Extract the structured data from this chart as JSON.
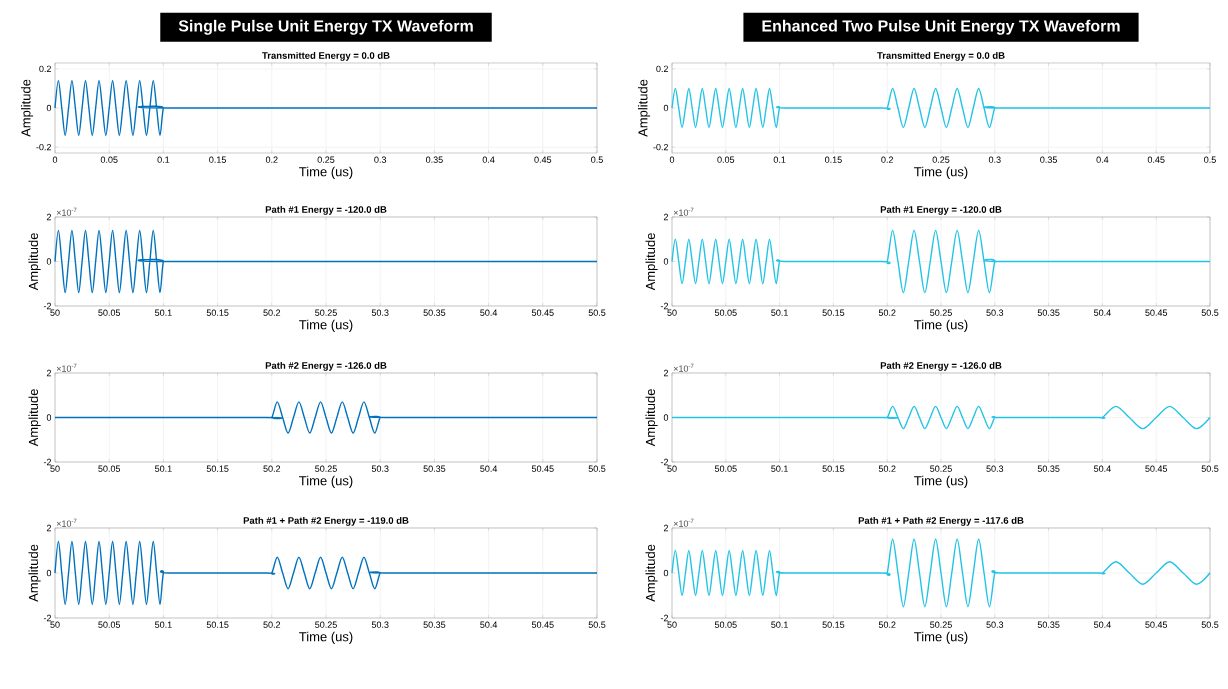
{
  "chart_data": [
    {
      "type": "line",
      "title": "Single Pulse Unit Energy TX Waveform",
      "subtitle": "Transmitted Energy = 0.0 dB",
      "xlabel": "Time (us)",
      "ylabel": "Amplitude",
      "xlim": [
        0,
        0.5
      ],
      "ylim": [
        -0.23,
        0.23
      ],
      "xticks": [
        0,
        0.05,
        0.1,
        0.15,
        0.2,
        0.25,
        0.3,
        0.35,
        0.4,
        0.45,
        0.5
      ],
      "yticks": [
        -0.2,
        0,
        0.2
      ],
      "grid": true,
      "series": [
        {
          "color": "#0072bd",
          "x": [
            0,
            0.003125,
            0.00625,
            0.009375,
            0.0125,
            0.015625,
            0.01875,
            0.021875,
            0.025,
            0.028125,
            0.03125,
            0.034375,
            0.0375,
            0.040625,
            0.04375,
            0.046875,
            0.05,
            0.053125,
            0.05625,
            0.059375,
            0.0625,
            0.065625,
            0.06875,
            0.071875,
            0.075,
            0.078125,
            0.08125,
            0.084375,
            0.0875,
            0.090625,
            0.09375,
            0.096875,
            0.1,
            0.105,
            0.5
          ],
          "values": [
            0,
            0.14,
            0,
            -0.14,
            0,
            0.14,
            0,
            -0.14,
            0,
            0.14,
            0,
            -0.14,
            0,
            0.14,
            0,
            -0.14,
            0,
            0.14,
            0,
            -0.14,
            0,
            0.14,
            0,
            -0.14,
            0,
            0.14,
            0,
            -0.14,
            0,
            0.14,
            0,
            -0.14,
            0,
            0,
            0
          ]
        }
      ]
    },
    {
      "type": "line",
      "title": "Enhanced Two Pulse Unit Energy TX Waveform",
      "subtitle": "Transmitted Energy = 0.0 dB",
      "xlabel": "Time (us)",
      "ylabel": "Amplitude",
      "xlim": [
        0,
        0.5
      ],
      "ylim": [
        -0.23,
        0.23
      ],
      "xticks": [
        0,
        0.05,
        0.1,
        0.15,
        0.2,
        0.25,
        0.3,
        0.35,
        0.4,
        0.45,
        0.5
      ],
      "yticks": [
        -0.2,
        0,
        0.2
      ],
      "grid": true,
      "series": [
        {
          "color": "#22c4e6",
          "x": [
            0,
            0.003125,
            0.00625,
            0.009375,
            0.0125,
            0.015625,
            0.01875,
            0.021875,
            0.025,
            0.028125,
            0.03125,
            0.034375,
            0.0375,
            0.040625,
            0.04375,
            0.046875,
            0.05,
            0.053125,
            0.05625,
            0.059375,
            0.0625,
            0.065625,
            0.06875,
            0.071875,
            0.075,
            0.078125,
            0.08125,
            0.084375,
            0.0875,
            0.090625,
            0.09375,
            0.096875,
            0.1,
            0.105,
            0.195,
            0.2,
            0.205,
            0.21,
            0.215,
            0.22,
            0.225,
            0.23,
            0.235,
            0.24,
            0.245,
            0.25,
            0.255,
            0.26,
            0.265,
            0.27,
            0.275,
            0.28,
            0.285,
            0.29,
            0.295,
            0.3,
            0.305,
            0.5
          ],
          "values": [
            0,
            0.1,
            0,
            -0.1,
            0,
            0.1,
            0,
            -0.1,
            0,
            0.1,
            0,
            -0.1,
            0,
            0.1,
            0,
            -0.1,
            0,
            0.1,
            0,
            -0.1,
            0,
            0.1,
            0,
            -0.1,
            0,
            0.1,
            0,
            -0.1,
            0,
            0.1,
            0,
            -0.1,
            0,
            0,
            0,
            0,
            0.1,
            0,
            -0.1,
            0,
            0.1,
            0,
            -0.1,
            0,
            0.1,
            0,
            -0.1,
            0,
            0.1,
            0,
            -0.1,
            0,
            0.1,
            0,
            -0.1,
            0,
            0,
            0
          ]
        }
      ]
    },
    {
      "type": "line",
      "title": "Path #1 Energy = -120.0 dB",
      "xlabel": "Time (us)",
      "ylabel": "Amplitude",
      "annotations": [
        "×10$^{-7}$"
      ],
      "xlim": [
        50,
        50.5
      ],
      "ylim": [
        -2,
        2
      ],
      "xticks": [
        50,
        50.05,
        50.1,
        50.15,
        50.2,
        50.25,
        50.3,
        50.35,
        50.4,
        50.45,
        50.5
      ],
      "yticks": [
        -2,
        0,
        2
      ],
      "grid": true,
      "series": [
        {
          "color": "#0072bd",
          "x": [
            50,
            50.003125,
            50.00625,
            50.009375,
            50.0125,
            50.015625,
            50.01875,
            50.021875,
            50.025,
            50.028125,
            50.03125,
            50.034375,
            50.0375,
            50.040625,
            50.04375,
            50.046875,
            50.05,
            50.053125,
            50.05625,
            50.059375,
            50.0625,
            50.065625,
            50.06875,
            50.071875,
            50.075,
            50.078125,
            50.08125,
            50.084375,
            50.0875,
            50.090625,
            50.09375,
            50.096875,
            50.1,
            50.105,
            50.5
          ],
          "values": [
            0,
            1.4,
            0,
            -1.4,
            0,
            1.4,
            0,
            -1.4,
            0,
            1.4,
            0,
            -1.4,
            0,
            1.4,
            0,
            -1.4,
            0,
            1.4,
            0,
            -1.4,
            0,
            1.4,
            0,
            -1.4,
            0,
            1.4,
            0,
            -1.4,
            0,
            1.4,
            0,
            -1.4,
            0,
            0,
            0
          ]
        }
      ]
    },
    {
      "type": "line",
      "title": "Path #1 Energy = -120.0 dB",
      "xlabel": "Time (us)",
      "ylabel": "Amplitude",
      "annotations": [
        "×10$^{-7}$"
      ],
      "xlim": [
        50,
        50.5
      ],
      "ylim": [
        -2,
        2
      ],
      "xticks": [
        50,
        50.05,
        50.1,
        50.15,
        50.2,
        50.25,
        50.3,
        50.35,
        50.4,
        50.45,
        50.5
      ],
      "yticks": [
        -2,
        0,
        2
      ],
      "grid": true,
      "series": [
        {
          "color": "#22c4e6",
          "x": [
            50,
            50.003125,
            50.00625,
            50.009375,
            50.0125,
            50.015625,
            50.01875,
            50.021875,
            50.025,
            50.028125,
            50.03125,
            50.034375,
            50.0375,
            50.040625,
            50.04375,
            50.046875,
            50.05,
            50.053125,
            50.05625,
            50.059375,
            50.0625,
            50.065625,
            50.06875,
            50.071875,
            50.075,
            50.078125,
            50.08125,
            50.084375,
            50.0875,
            50.090625,
            50.09375,
            50.096875,
            50.1,
            50.105,
            50.195,
            50.2,
            50.205,
            50.21,
            50.215,
            50.22,
            50.225,
            50.23,
            50.235,
            50.24,
            50.245,
            50.25,
            50.255,
            50.26,
            50.265,
            50.27,
            50.275,
            50.28,
            50.285,
            50.29,
            50.295,
            50.3,
            50.305,
            50.5
          ],
          "values": [
            0,
            1,
            0,
            -1,
            0,
            1,
            0,
            -1,
            0,
            1,
            0,
            -1,
            0,
            1,
            0,
            -1,
            0,
            1,
            0,
            -1,
            0,
            1,
            0,
            -1,
            0,
            1,
            0,
            -1,
            0,
            1,
            0,
            -1,
            0,
            0,
            0,
            0,
            1.4,
            0,
            -1.4,
            0,
            1.4,
            0,
            -1.4,
            0,
            1.4,
            0,
            -1.4,
            0,
            1.4,
            0,
            -1.4,
            0,
            1.4,
            0,
            -1.4,
            0,
            0,
            0
          ]
        }
      ]
    },
    {
      "type": "line",
      "title": "Path #2 Energy = -126.0 dB",
      "xlabel": "Time (us)",
      "ylabel": "Amplitude",
      "annotations": [
        "×10$^{-7}$"
      ],
      "xlim": [
        50,
        50.5
      ],
      "ylim": [
        -2,
        2
      ],
      "xticks": [
        50,
        50.05,
        50.1,
        50.15,
        50.2,
        50.25,
        50.3,
        50.35,
        50.4,
        50.45,
        50.5
      ],
      "yticks": [
        -2,
        0,
        2
      ],
      "grid": true,
      "series": [
        {
          "color": "#0072bd",
          "x": [
            50,
            50.195,
            50.2,
            50.205,
            50.21,
            50.215,
            50.22,
            50.225,
            50.23,
            50.235,
            50.24,
            50.245,
            50.25,
            50.255,
            50.26,
            50.265,
            50.27,
            50.275,
            50.28,
            50.285,
            50.29,
            50.295,
            50.3,
            50.305,
            50.5
          ],
          "values": [
            0,
            0,
            0,
            0.7,
            0,
            -0.7,
            0,
            0.7,
            0,
            -0.7,
            0,
            0.7,
            0,
            -0.7,
            0,
            0.7,
            0,
            -0.7,
            0,
            0.7,
            0,
            -0.7,
            0,
            0,
            0
          ]
        }
      ]
    },
    {
      "type": "line",
      "title": "Path #2 Energy = -126.0 dB",
      "xlabel": "Time (us)",
      "ylabel": "Amplitude",
      "annotations": [
        "×10$^{-7}$"
      ],
      "xlim": [
        50,
        50.5
      ],
      "ylim": [
        -2,
        2
      ],
      "xticks": [
        50,
        50.05,
        50.1,
        50.15,
        50.2,
        50.25,
        50.3,
        50.35,
        50.4,
        50.45,
        50.5
      ],
      "yticks": [
        -2,
        0,
        2
      ],
      "grid": true,
      "series": [
        {
          "color": "#22c4e6",
          "x": [
            50,
            50.195,
            50.2,
            50.205,
            50.21,
            50.215,
            50.22,
            50.225,
            50.23,
            50.235,
            50.24,
            50.245,
            50.25,
            50.255,
            50.26,
            50.265,
            50.27,
            50.275,
            50.28,
            50.285,
            50.29,
            50.295,
            50.3,
            50.305,
            50.395,
            50.4,
            50.4125,
            50.425,
            50.4375,
            50.45,
            50.4625,
            50.475,
            50.4875,
            50.5
          ],
          "values": [
            0,
            0,
            0,
            0.5,
            0,
            -0.5,
            0,
            0.5,
            0,
            -0.5,
            0,
            0.5,
            0,
            -0.5,
            0,
            0.5,
            0,
            -0.5,
            0,
            0.5,
            0,
            -0.5,
            0,
            0,
            0,
            0,
            0.5,
            0,
            -0.5,
            0,
            0.5,
            0,
            -0.5,
            0
          ]
        }
      ]
    },
    {
      "type": "line",
      "title": "Path #1 + Path #2 Energy = -119.0 dB",
      "xlabel": "Time (us)",
      "ylabel": "Amplitude",
      "annotations": [
        "×10$^{-7}$"
      ],
      "xlim": [
        50,
        50.5
      ],
      "ylim": [
        -2,
        2
      ],
      "xticks": [
        50,
        50.05,
        50.1,
        50.15,
        50.2,
        50.25,
        50.3,
        50.35,
        50.4,
        50.45,
        50.5
      ],
      "yticks": [
        -2,
        0,
        2
      ],
      "grid": true,
      "series": [
        {
          "color": "#0072bd",
          "x": [
            50,
            50.003125,
            50.00625,
            50.009375,
            50.0125,
            50.015625,
            50.01875,
            50.021875,
            50.025,
            50.028125,
            50.03125,
            50.034375,
            50.0375,
            50.040625,
            50.04375,
            50.046875,
            50.05,
            50.053125,
            50.05625,
            50.059375,
            50.0625,
            50.065625,
            50.06875,
            50.071875,
            50.075,
            50.078125,
            50.08125,
            50.084375,
            50.0875,
            50.090625,
            50.09375,
            50.096875,
            50.1,
            50.105,
            50.195,
            50.2,
            50.205,
            50.21,
            50.215,
            50.22,
            50.225,
            50.23,
            50.235,
            50.24,
            50.245,
            50.25,
            50.255,
            50.26,
            50.265,
            50.27,
            50.275,
            50.28,
            50.285,
            50.29,
            50.295,
            50.3,
            50.305,
            50.5
          ],
          "values": [
            0,
            1.4,
            0,
            -1.4,
            0,
            1.4,
            0,
            -1.4,
            0,
            1.4,
            0,
            -1.4,
            0,
            1.4,
            0,
            -1.4,
            0,
            1.4,
            0,
            -1.4,
            0,
            1.4,
            0,
            -1.4,
            0,
            1.4,
            0,
            -1.4,
            0,
            1.4,
            0,
            -1.4,
            0,
            0,
            0,
            0,
            0.7,
            0,
            -0.7,
            0,
            0.7,
            0,
            -0.7,
            0,
            0.7,
            0,
            -0.7,
            0,
            0.7,
            0,
            -0.7,
            0,
            0.7,
            0,
            -0.7,
            0,
            0,
            0
          ]
        }
      ]
    },
    {
      "type": "line",
      "title": "Path #1 + Path #2 Energy = -117.6 dB",
      "xlabel": "Time (us)",
      "ylabel": "Amplitude",
      "annotations": [
        "×10$^{-7}$"
      ],
      "xlim": [
        50,
        50.5
      ],
      "ylim": [
        -2,
        2
      ],
      "xticks": [
        50,
        50.05,
        50.1,
        50.15,
        50.2,
        50.25,
        50.3,
        50.35,
        50.4,
        50.45,
        50.5
      ],
      "yticks": [
        -2,
        0,
        2
      ],
      "grid": true,
      "series": [
        {
          "color": "#22c4e6",
          "x": [
            50,
            50.003125,
            50.00625,
            50.009375,
            50.0125,
            50.015625,
            50.01875,
            50.021875,
            50.025,
            50.028125,
            50.03125,
            50.034375,
            50.0375,
            50.040625,
            50.04375,
            50.046875,
            50.05,
            50.053125,
            50.05625,
            50.059375,
            50.0625,
            50.065625,
            50.06875,
            50.071875,
            50.075,
            50.078125,
            50.08125,
            50.084375,
            50.0875,
            50.090625,
            50.09375,
            50.096875,
            50.1,
            50.105,
            50.195,
            50.2,
            50.205,
            50.21,
            50.215,
            50.22,
            50.225,
            50.23,
            50.235,
            50.24,
            50.245,
            50.25,
            50.255,
            50.26,
            50.265,
            50.27,
            50.275,
            50.28,
            50.285,
            50.29,
            50.295,
            50.3,
            50.305,
            50.395,
            50.4,
            50.4125,
            50.425,
            50.4375,
            50.45,
            50.4625,
            50.475,
            50.4875,
            50.5
          ],
          "values": [
            0,
            1,
            0,
            -1,
            0,
            1,
            0,
            -1,
            0,
            1,
            0,
            -1,
            0,
            1,
            0,
            -1,
            0,
            1,
            0,
            -1,
            0,
            1,
            0,
            -1,
            0,
            1,
            0,
            -1,
            0,
            1,
            0,
            -1,
            0,
            0,
            0,
            0,
            1.5,
            0,
            -1.5,
            0,
            1.5,
            0,
            -1.5,
            0,
            1.5,
            0,
            -1.5,
            0,
            1.5,
            0,
            -1.5,
            0,
            1.5,
            0,
            -1.5,
            0,
            0,
            0,
            0,
            0.5,
            0,
            -0.5,
            0,
            0.5,
            0,
            -0.5,
            0
          ]
        }
      ]
    }
  ]
}
